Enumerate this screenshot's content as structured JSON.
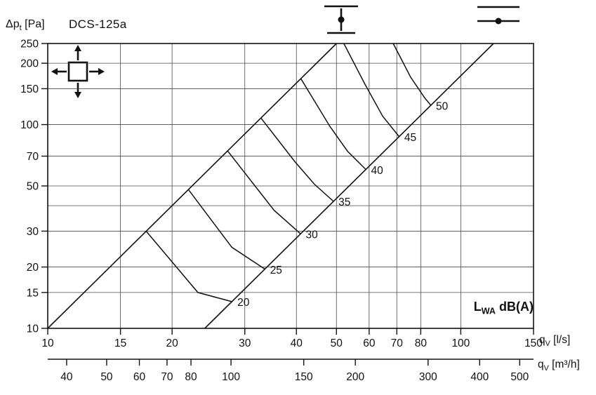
{
  "title": "DCS-125a",
  "labels": {
    "y_axis": {
      "prefix": "Δp",
      "sub": "t",
      "suffix": " [Pa]"
    },
    "x_axis_ls": {
      "prefix": "q",
      "sub": "V",
      "suffix": " [l/s]"
    },
    "x_axis_m3h": {
      "prefix": "q",
      "sub": "V",
      "suffix": " [m³/h]"
    },
    "curve_set": {
      "prefix": "L",
      "sub": "WA",
      "suffix": " dB(A)"
    }
  },
  "icons": [
    {
      "name": "four-way-airflow-icon",
      "description": "square diffuser with arrows pointing up, down, left and right"
    },
    {
      "name": "vertical-duct-mount-icon",
      "description": "vertical line with dot between two horizontal bars"
    },
    {
      "name": "horizontal-duct-mount-icon",
      "description": "two horizontal lines with a dot on the lower line"
    }
  ],
  "colors": {
    "ink": "#111111",
    "grid": "#4a4a4a",
    "background": "#ffffff"
  },
  "chart_data": {
    "type": "line",
    "scale": "log-log",
    "grid": true,
    "title": "DCS-125a",
    "xlabel": "qV [l/s]",
    "ylabel": "Δpt [Pa]",
    "x_axis": {
      "label": "qV [l/s]",
      "range": [
        10,
        150
      ],
      "ticks": [
        10,
        15,
        20,
        30,
        40,
        50,
        60,
        70,
        80,
        100,
        150
      ]
    },
    "x_axis_secondary": {
      "label": "qV [m³/h]",
      "ticks": [
        40,
        50,
        60,
        70,
        80,
        100,
        150,
        200,
        300,
        400,
        500
      ],
      "ls_to_m3h": 3.6
    },
    "y_axis": {
      "label": "Δpt [Pa]",
      "range": [
        10,
        250
      ],
      "ticks": [
        10,
        15,
        20,
        30,
        50,
        70,
        100,
        150,
        200,
        250
      ],
      "gridlines": [
        15,
        20,
        30,
        40,
        50,
        70,
        100,
        150,
        200
      ]
    },
    "boundary_lines": [
      {
        "name": "lower-flow-limit-line",
        "points": [
          [
            10,
            10
          ],
          [
            50,
            250
          ]
        ]
      },
      {
        "name": "upper-flow-limit-line",
        "points": [
          [
            24,
            10
          ],
          [
            120,
            250
          ]
        ]
      }
    ],
    "noise_curves": [
      {
        "label": "20",
        "points": [
          [
            17.3,
            30
          ],
          [
            23.1,
            15
          ],
          [
            28,
            13.5
          ]
        ]
      },
      {
        "label": "25",
        "points": [
          [
            21.9,
            48
          ],
          [
            27.9,
            25
          ],
          [
            33.6,
            19.5
          ]
        ]
      },
      {
        "label": "30",
        "points": [
          [
            27.3,
            74
          ],
          [
            35.3,
            38
          ],
          [
            41,
            29
          ]
        ]
      },
      {
        "label": "35",
        "points": [
          [
            32.8,
            108
          ],
          [
            39.6,
            66
          ],
          [
            44.2,
            51
          ],
          [
            49.2,
            42
          ]
        ]
      },
      {
        "label": "40",
        "points": [
          [
            41,
            168
          ],
          [
            48.2,
            98
          ],
          [
            53.2,
            74
          ],
          [
            59,
            60
          ]
        ]
      },
      {
        "label": "45",
        "points": [
          [
            52.1,
            250
          ],
          [
            58.6,
            158
          ],
          [
            64.7,
            110
          ],
          [
            71,
            87
          ]
        ]
      },
      {
        "label": "50",
        "points": [
          [
            68.6,
            250
          ],
          [
            75.6,
            171
          ],
          [
            81.8,
            135
          ],
          [
            84.7,
            124
          ]
        ]
      }
    ],
    "curve_unit_label": "LWA dB(A)"
  }
}
